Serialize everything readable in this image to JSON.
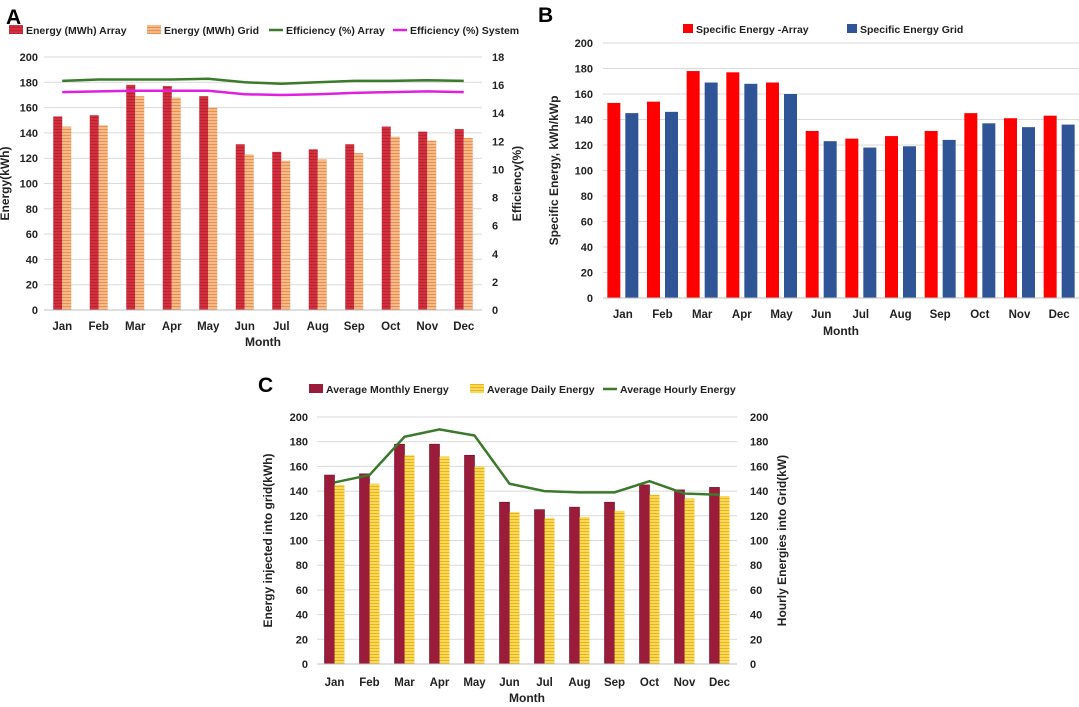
{
  "chart_data": [
    {
      "panel": "A",
      "type": "bar",
      "categories": [
        "Jan",
        "Feb",
        "Mar",
        "Apr",
        "May",
        "Jun",
        "Jul",
        "Aug",
        "Sep",
        "Oct",
        "Nov",
        "Dec"
      ],
      "series": [
        {
          "name": "Energy (MWh) Array",
          "kind": "bar",
          "axis": "left",
          "color": "#d32f3f",
          "values": [
            153,
            154,
            178,
            177,
            169,
            131,
            125,
            127,
            131,
            145,
            141,
            143
          ]
        },
        {
          "name": "Energy (MWh) Grid",
          "kind": "bar",
          "axis": "left",
          "color": "#f4a46a",
          "values": [
            145,
            146,
            169,
            168,
            160,
            123,
            118,
            119,
            124,
            137,
            134,
            136
          ]
        },
        {
          "name": "Efficiency (%) Array",
          "kind": "line",
          "axis": "right",
          "color": "#3a7a2a",
          "values": [
            16.3,
            16.4,
            16.4,
            16.4,
            16.45,
            16.2,
            16.1,
            16.2,
            16.3,
            16.3,
            16.35,
            16.3
          ]
        },
        {
          "name": "Efficiency (%) System",
          "kind": "line",
          "axis": "right",
          "color": "#e020e0",
          "values": [
            15.5,
            15.55,
            15.6,
            15.6,
            15.6,
            15.35,
            15.3,
            15.35,
            15.45,
            15.5,
            15.55,
            15.5
          ]
        }
      ],
      "xlabel": "Month",
      "ylabel": "Energy(kWh)",
      "y2label": "Efficiency(%)",
      "ylim": [
        0,
        200
      ],
      "yticks": [
        0,
        20,
        40,
        60,
        80,
        100,
        120,
        140,
        160,
        180,
        200
      ],
      "y2lim": [
        0,
        18
      ],
      "y2ticks": [
        0,
        2,
        4,
        6,
        8,
        10,
        12,
        14,
        16,
        18
      ],
      "legend_position": "top"
    },
    {
      "panel": "B",
      "type": "bar",
      "categories": [
        "Jan",
        "Feb",
        "Mar",
        "Apr",
        "May",
        "Jun",
        "Jul",
        "Aug",
        "Sep",
        "Oct",
        "Nov",
        "Dec"
      ],
      "series": [
        {
          "name": "Specific Energy -Array",
          "kind": "bar",
          "color": "#ff0000",
          "values": [
            153,
            154,
            178,
            177,
            169,
            131,
            125,
            127,
            131,
            145,
            141,
            143
          ]
        },
        {
          "name": "Specific Energy Grid",
          "kind": "bar",
          "color": "#2f5597",
          "values": [
            145,
            146,
            169,
            168,
            160,
            123,
            118,
            119,
            124,
            137,
            134,
            136
          ]
        }
      ],
      "xlabel": "Month",
      "ylabel": "Specific Energy, kWh/kWp",
      "ylim": [
        0,
        200
      ],
      "yticks": [
        0,
        20,
        40,
        60,
        80,
        100,
        120,
        140,
        160,
        180,
        200
      ],
      "legend_position": "top"
    },
    {
      "panel": "C",
      "type": "bar",
      "categories": [
        "Jan",
        "Feb",
        "Mar",
        "Apr",
        "May",
        "Jun",
        "Jul",
        "Aug",
        "Sep",
        "Oct",
        "Nov",
        "Dec"
      ],
      "series": [
        {
          "name": "Average Monthly Energy",
          "kind": "bar",
          "axis": "left",
          "color": "#9b1b3a",
          "values": [
            153,
            154,
            178,
            178,
            169,
            131,
            125,
            127,
            131,
            145,
            141,
            143
          ]
        },
        {
          "name": "Average Daily Energy",
          "kind": "bar",
          "axis": "left",
          "color": "#f7c934",
          "values": [
            145,
            146,
            169,
            168,
            160,
            123,
            118,
            119,
            124,
            137,
            134,
            136
          ]
        },
        {
          "name": "Average Hourly Energy",
          "kind": "line",
          "axis": "right",
          "color": "#3a7a2a",
          "values": [
            147,
            153,
            184,
            190,
            185,
            146,
            140,
            139,
            139,
            148,
            138,
            137
          ]
        }
      ],
      "xlabel": "Month",
      "ylabel": "Energy injected into grid(kWh)",
      "y2label": "Hourly Energies into Grid(kW)",
      "ylim": [
        0,
        200
      ],
      "yticks": [
        0,
        20,
        40,
        60,
        80,
        100,
        120,
        140,
        160,
        180,
        200
      ],
      "y2lim": [
        0,
        200
      ],
      "y2ticks": [
        0,
        20,
        40,
        60,
        80,
        100,
        120,
        140,
        160,
        180,
        200
      ],
      "legend_position": "top"
    }
  ],
  "panels": [
    {
      "letter": "A"
    },
    {
      "letter": "B"
    },
    {
      "letter": "C"
    }
  ]
}
